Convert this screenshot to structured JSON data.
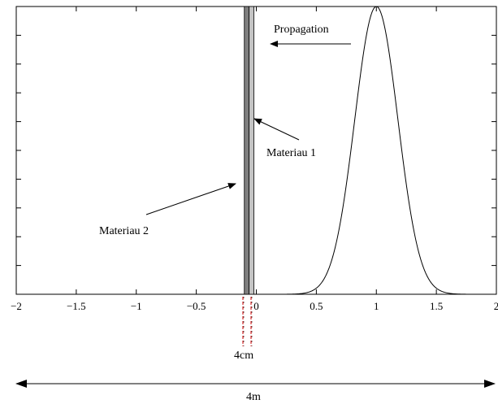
{
  "chart_data": {
    "type": "line",
    "xlim": [
      -2,
      2
    ],
    "ylim": [
      0,
      1
    ],
    "x_ticks": [
      -2,
      -1.5,
      -1,
      -0.5,
      0,
      0.5,
      1,
      1.5,
      2
    ],
    "x_tick_labels": [
      "−2",
      "−1.5",
      "−1",
      "−0.5",
      "0",
      "0.5",
      "1",
      "1.5",
      "2"
    ],
    "y_ticks": [
      0,
      0.1,
      0.2,
      0.3,
      0.4,
      0.5,
      0.6,
      0.7,
      0.8,
      0.9
    ],
    "grid": false,
    "pulse": {
      "shape": "gaussian",
      "center": 1.0,
      "peak": 1.0,
      "sigma": 0.18
    },
    "materials": [
      {
        "name": "Materiau 2",
        "x_start": -0.1,
        "x_end": -0.06,
        "color": "#7f7f7f"
      },
      {
        "name": "Materiau 1",
        "x_start": -0.06,
        "x_end": -0.02,
        "color": "#c4c4c4"
      }
    ]
  },
  "annotations": {
    "propagation": "Propagation",
    "materiau1": "Materiau 1",
    "materiau2": "Materiau 2",
    "thickness": "4cm",
    "domain_length": "4m"
  }
}
